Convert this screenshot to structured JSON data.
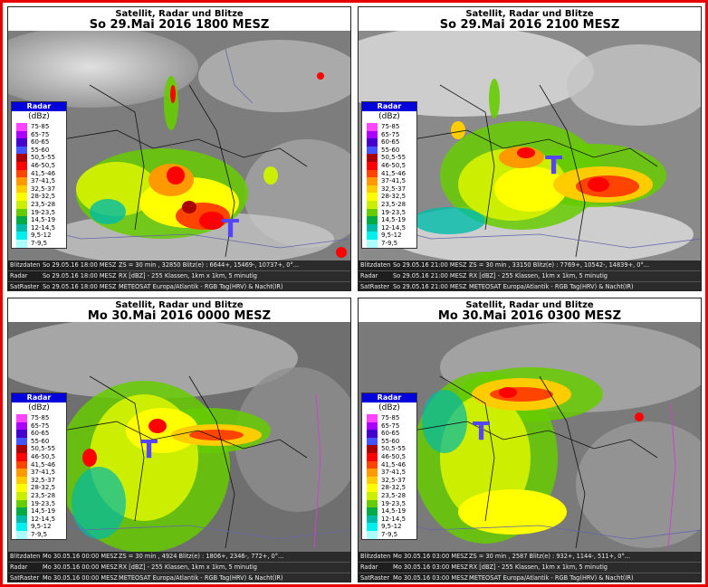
{
  "legend": {
    "header": "Radar",
    "unit": "(dBz)",
    "classes": [
      {
        "label": "75-85",
        "color": "#ff44ff"
      },
      {
        "label": "65-75",
        "color": "#aa00ff"
      },
      {
        "label": "60-65",
        "color": "#4400cc"
      },
      {
        "label": "55-60",
        "color": "#4455ff"
      },
      {
        "label": "50,5-55",
        "color": "#aa0000"
      },
      {
        "label": "46-50,5",
        "color": "#ff0000"
      },
      {
        "label": "41,5-46",
        "color": "#ff4400"
      },
      {
        "label": "37-41,5",
        "color": "#ff9900"
      },
      {
        "label": "32,5-37",
        "color": "#ffcc00"
      },
      {
        "label": "28-32,5",
        "color": "#ffff00"
      },
      {
        "label": "23,5-28",
        "color": "#ccee00"
      },
      {
        "label": "19-23,5",
        "color": "#66cc00"
      },
      {
        "label": "14,5-19",
        "color": "#00aa44"
      },
      {
        "label": "12-14,5",
        "color": "#00bbaa"
      },
      {
        "label": "9,5-12",
        "color": "#00eeee"
      },
      {
        "label": "7-9,5",
        "color": "#aaffff"
      }
    ]
  },
  "info_labels": {
    "blitz": "Blitzdaten",
    "radar": "Radar",
    "sat": "SatRaster"
  },
  "panels": [
    {
      "title": "Satellit, Radar und Blitze",
      "subtitle": "So 29.Mai 2016 1800 MESZ",
      "blitz_time": "So 29.05.16 18:00 MESZ",
      "blitz_text": "ZS = 30 min , 32850 Blitz(e) : 6644+, 15469-, 10737+, 0°...",
      "radar_time": "So 29.05.16 18:00 MESZ",
      "radar_text": "RX [dBZ] - 255 Klassen, 1km x 1km, 5 minutig",
      "sat_time": "So 29.05.16 18:00 MESZ",
      "sat_text": "METEOSAT Europa/Atlantik - RGB Tag(HRV) & Nacht(IR)"
    },
    {
      "title": "Satellit, Radar und Blitze",
      "subtitle": "So 29.Mai 2016 2100 MESZ",
      "blitz_time": "So 29.05.16 21:00 MESZ",
      "blitz_text": "ZS = 30 min , 33150 Blitz(e) : 7769+, 10542-, 14839+, 0°...",
      "radar_time": "So 29.05.16 21:00 MESZ",
      "radar_text": "RX [dBZ] - 255 Klassen, 1km x 1km, 5 minutig",
      "sat_time": "So 29.05.16 21:00 MESZ",
      "sat_text": "METEOSAT Europa/Atlantik - RGB Tag(HRV) & Nacht(IR)"
    },
    {
      "title": "Satellit, Radar und Blitze",
      "subtitle": "Mo 30.Mai 2016 0000 MESZ",
      "blitz_time": "Mo 30.05.16 00:00 MESZ",
      "blitz_text": "ZS = 30 min , 4924 Blitz(e) : 1806+, 2346-, 772+, 0°...",
      "radar_time": "Mo 30.05.16 00:00 MESZ",
      "radar_text": "RX [dBZ] - 255 Klassen, 1km x 1km, 5 minutig",
      "sat_time": "Mo 30.05.16 00:00 MESZ",
      "sat_text": "METEOSAT Europa/Atlantik - RGB Tag(HRV) & Nacht(IR)"
    },
    {
      "title": "Satellit, Radar und Blitze",
      "subtitle": "Mo 30.Mai 2016 0300 MESZ",
      "blitz_time": "Mo 30.05.16 03:00 MESZ",
      "blitz_text": "ZS = 30 min , 2587 Blitz(e) : 932+, 1144-, 511+, 0°...",
      "radar_time": "Mo 30.05.16 03:00 MESZ",
      "radar_text": "RX [dBZ] - 255 Klassen, 1km x 1km, 5 minutig",
      "sat_time": "Mo 30.05.16 03:00 MESZ",
      "sat_text": "METEOSAT Europa/Atlantik - RGB Tag(HRV) & Nacht(IR)"
    }
  ],
  "low_marker": "T"
}
